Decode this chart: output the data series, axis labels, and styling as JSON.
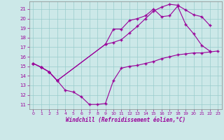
{
  "xlabel": "Windchill (Refroidissement éolien,°C)",
  "bg_color": "#cce8e8",
  "line_color": "#990099",
  "grid_color": "#99cccc",
  "xlim": [
    -0.5,
    23.5
  ],
  "ylim": [
    10.5,
    21.8
  ],
  "yticks": [
    11,
    12,
    13,
    14,
    15,
    16,
    17,
    18,
    19,
    20,
    21
  ],
  "xticks": [
    0,
    1,
    2,
    3,
    4,
    5,
    6,
    7,
    8,
    9,
    10,
    11,
    12,
    13,
    14,
    15,
    16,
    17,
    18,
    19,
    20,
    21,
    22,
    23
  ],
  "line1_x": [
    0,
    1,
    2,
    3,
    4,
    5,
    6,
    7,
    8,
    9,
    10,
    11,
    12,
    13,
    14,
    15,
    16,
    17,
    18,
    19,
    20,
    21,
    22,
    23
  ],
  "line1_y": [
    15.3,
    14.9,
    14.4,
    13.5,
    12.5,
    12.3,
    11.8,
    11.0,
    11.0,
    11.1,
    13.5,
    14.8,
    15.0,
    15.1,
    15.3,
    15.5,
    15.8,
    16.0,
    16.2,
    16.3,
    16.4,
    16.4,
    16.5,
    16.6
  ],
  "line2_x": [
    0,
    1,
    2,
    3,
    9,
    10,
    11,
    12,
    13,
    14,
    15,
    16,
    17,
    18,
    19,
    20,
    21,
    22
  ],
  "line2_y": [
    15.3,
    14.9,
    14.4,
    13.5,
    17.3,
    18.9,
    18.9,
    19.8,
    20.0,
    20.3,
    21.0,
    20.2,
    20.3,
    21.3,
    19.4,
    18.4,
    17.2,
    16.6
  ],
  "line3_x": [
    0,
    1,
    2,
    3,
    9,
    10,
    11,
    12,
    13,
    14,
    15,
    16,
    17,
    18,
    19,
    20,
    21,
    22
  ],
  "line3_y": [
    15.3,
    14.9,
    14.4,
    13.5,
    17.3,
    17.5,
    17.8,
    18.5,
    19.2,
    20.0,
    20.8,
    21.2,
    21.5,
    21.4,
    20.9,
    20.4,
    20.2,
    19.3
  ]
}
